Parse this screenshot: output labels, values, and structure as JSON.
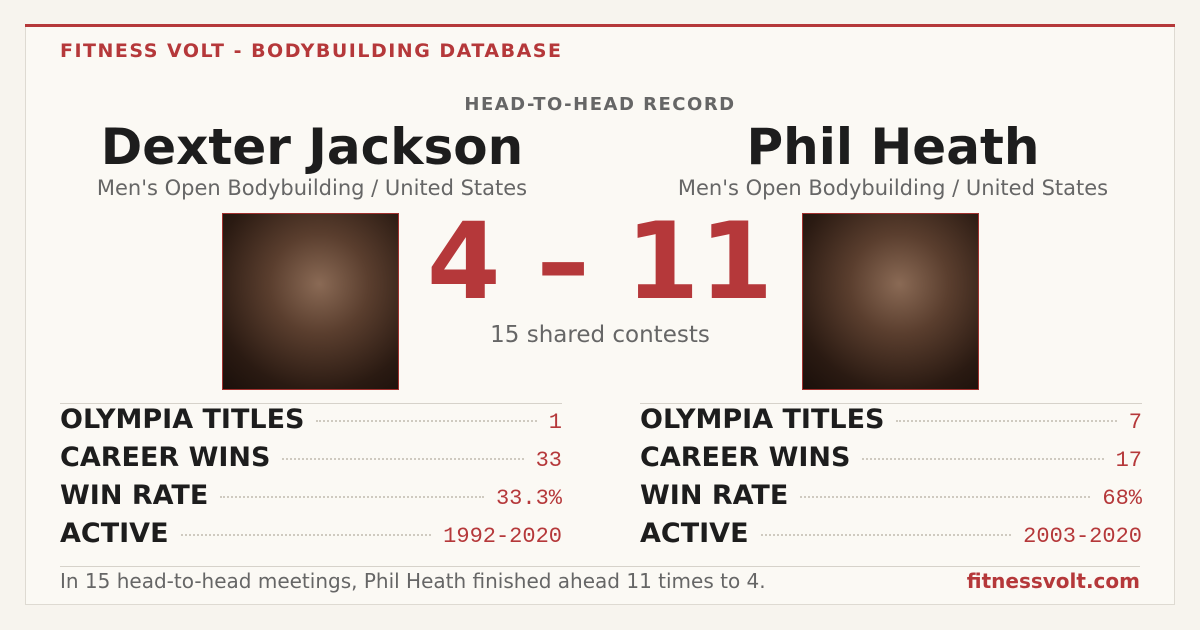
{
  "header": {
    "brand": "FITNESS VOLT - BODYBUILDING DATABASE",
    "section": "HEAD-TO-HEAD RECORD"
  },
  "athletes": [
    {
      "name": "Dexter Jackson",
      "subtitle": "Men's Open Bodybuilding / United States",
      "stats": [
        [
          "OLYMPIA TITLES",
          "1"
        ],
        [
          "CAREER WINS",
          "33"
        ],
        [
          "WIN RATE",
          "33.3%"
        ],
        [
          "ACTIVE",
          "1992-2020"
        ]
      ]
    },
    {
      "name": "Phil Heath",
      "subtitle": "Men's Open Bodybuilding / United States",
      "stats": [
        [
          "OLYMPIA TITLES",
          "7"
        ],
        [
          "CAREER WINS",
          "17"
        ],
        [
          "WIN RATE",
          "68%"
        ],
        [
          "ACTIVE",
          "2003-2020"
        ]
      ]
    }
  ],
  "score": {
    "left": "4",
    "separator": "–",
    "right": "11",
    "caption": "15 shared contests"
  },
  "footer": {
    "summary": "In 15 head-to-head meetings, Phil Heath finished ahead 11 times to 4.",
    "site": "fitnessvolt.com"
  }
}
